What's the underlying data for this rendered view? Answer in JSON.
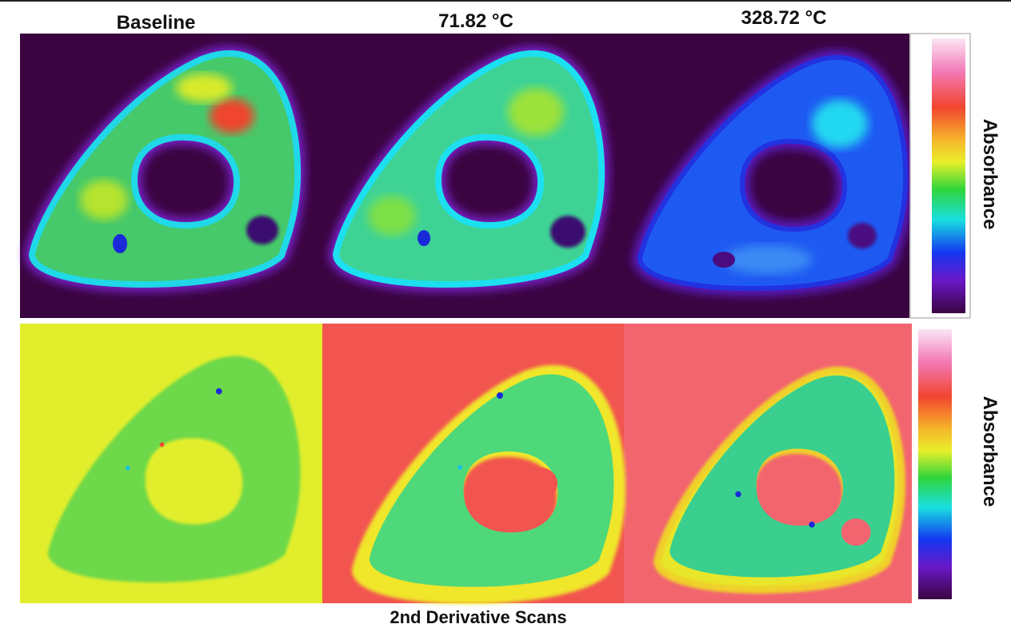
{
  "columns": [
    {
      "title": "Baseline"
    },
    {
      "title": "71.82 °C"
    },
    {
      "title": "328.72 °C"
    }
  ],
  "colorbars": [
    {
      "label": "Absorbance"
    },
    {
      "label": "Absorbance"
    }
  ],
  "caption": "2nd Derivative Scans"
}
